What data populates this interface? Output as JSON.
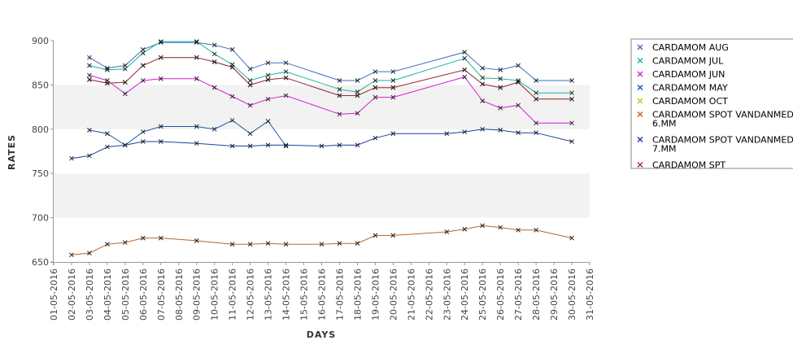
{
  "chart_data": {
    "type": "line",
    "xlabel": "DAYS",
    "ylabel": "RATES",
    "ylim": [
      650,
      900
    ],
    "yticks": [
      650,
      700,
      750,
      800,
      850,
      900
    ],
    "x_tick_labels": [
      "01-05-2016",
      "02-05-2016",
      "03-05-2016",
      "04-05-2016",
      "05-05-2016",
      "06-05-2016",
      "07-05-2016",
      "08-05-2016",
      "09-05-2016",
      "10-05-2016",
      "11-05-2016",
      "12-05-2016",
      "13-05-2016",
      "14-05-2016",
      "15-05-2016",
      "16-05-2016",
      "17-05-2016",
      "18-05-2016",
      "19-05-2016",
      "20-05-2016",
      "21-05-2016",
      "22-05-2016",
      "23-05-2016",
      "24-05-2016",
      "25-05-2016",
      "26-05-2016",
      "27-05-2016",
      "28-05-2016",
      "29-05-2016",
      "30-05-2016",
      "31-05-2016"
    ],
    "grid": "alternating horizontal bands",
    "legend_position": "right",
    "series": [
      {
        "name": "CARDAMOM AUG",
        "color": "#3a6fc4",
        "points": [
          [
            3,
            881
          ],
          [
            4,
            869
          ],
          [
            5,
            872
          ],
          [
            6,
            890
          ],
          [
            7,
            898
          ],
          [
            9,
            898
          ],
          [
            10,
            895
          ],
          [
            11,
            890
          ],
          [
            12,
            868
          ],
          [
            13,
            875
          ],
          [
            14,
            875
          ],
          [
            17,
            855
          ],
          [
            18,
            855
          ],
          [
            19,
            865
          ],
          [
            20,
            865
          ],
          [
            24,
            887
          ],
          [
            25,
            869
          ],
          [
            26,
            867
          ],
          [
            27,
            872
          ],
          [
            28,
            855
          ],
          [
            30,
            855
          ]
        ]
      },
      {
        "name": "CARDAMOM JUL",
        "color": "#1fb39a",
        "points": [
          [
            3,
            872
          ],
          [
            4,
            867
          ],
          [
            5,
            868
          ],
          [
            6,
            886
          ],
          [
            7,
            899
          ],
          [
            9,
            899
          ],
          [
            10,
            885
          ],
          [
            11,
            873
          ],
          [
            12,
            855
          ],
          [
            13,
            861
          ],
          [
            14,
            865
          ],
          [
            17,
            845
          ],
          [
            18,
            842
          ],
          [
            19,
            855
          ],
          [
            20,
            855
          ],
          [
            24,
            880
          ],
          [
            25,
            858
          ],
          [
            26,
            857
          ],
          [
            27,
            855
          ],
          [
            28,
            841
          ],
          [
            30,
            841
          ]
        ]
      },
      {
        "name": "CARDAMOM JUN",
        "color": "#d61ed6",
        "points": [
          [
            3,
            861
          ],
          [
            4,
            855
          ],
          [
            5,
            840
          ],
          [
            6,
            855
          ],
          [
            7,
            857
          ],
          [
            9,
            857
          ],
          [
            10,
            847
          ],
          [
            11,
            837
          ],
          [
            12,
            827
          ],
          [
            13,
            834
          ],
          [
            14,
            838
          ],
          [
            17,
            817
          ],
          [
            18,
            818
          ],
          [
            19,
            836
          ],
          [
            20,
            836
          ],
          [
            24,
            859
          ],
          [
            25,
            832
          ],
          [
            26,
            824
          ],
          [
            27,
            827
          ],
          [
            28,
            807
          ],
          [
            30,
            807
          ]
        ]
      },
      {
        "name": "CARDAMOM MAY",
        "color": "#1a5aa8",
        "points": [
          [
            3,
            799
          ],
          [
            4,
            795
          ],
          [
            5,
            782
          ],
          [
            6,
            797
          ],
          [
            7,
            803
          ],
          [
            9,
            803
          ],
          [
            10,
            800
          ],
          [
            11,
            810
          ],
          [
            12,
            795
          ],
          [
            13,
            809
          ],
          [
            14,
            781
          ]
        ]
      },
      {
        "name": "CARDAMOM OCT",
        "color": "#c8c800",
        "points": [
          [
            3,
            856
          ],
          [
            4,
            852
          ],
          [
            5,
            853
          ],
          [
            6,
            872
          ],
          [
            7,
            881
          ],
          [
            9,
            881
          ],
          [
            10,
            876
          ],
          [
            11,
            870
          ],
          [
            12,
            850
          ],
          [
            13,
            856
          ],
          [
            14,
            858
          ],
          [
            17,
            838
          ],
          [
            18,
            838
          ],
          [
            19,
            847
          ],
          [
            20,
            847
          ],
          [
            24,
            867
          ],
          [
            25,
            851
          ],
          [
            26,
            847
          ],
          [
            27,
            853
          ],
          [
            28,
            834
          ],
          [
            30,
            834
          ]
        ]
      },
      {
        "name": "CARDAMOM SPOT VANDANMEDU\n6.MM",
        "color": "#b8662a",
        "points": [
          [
            2,
            658
          ],
          [
            3,
            660
          ],
          [
            4,
            670
          ],
          [
            5,
            672
          ],
          [
            6,
            677
          ],
          [
            7,
            677
          ],
          [
            9,
            674
          ],
          [
            11,
            670
          ],
          [
            12,
            670
          ],
          [
            13,
            671
          ],
          [
            14,
            670
          ],
          [
            16,
            670
          ],
          [
            17,
            671
          ],
          [
            18,
            671
          ],
          [
            19,
            680
          ],
          [
            20,
            680
          ],
          [
            23,
            684
          ],
          [
            24,
            687
          ],
          [
            25,
            691
          ],
          [
            26,
            689
          ],
          [
            27,
            686
          ],
          [
            28,
            686
          ],
          [
            30,
            677
          ]
        ]
      },
      {
        "name": "CARDAMOM SPOT VANDANMEDU\n7.MM",
        "color": "#1a3fa0",
        "points": [
          [
            2,
            767
          ],
          [
            3,
            770
          ],
          [
            4,
            780
          ],
          [
            5,
            782
          ],
          [
            6,
            786
          ],
          [
            7,
            786
          ],
          [
            9,
            784
          ],
          [
            11,
            781
          ],
          [
            12,
            781
          ],
          [
            13,
            782
          ],
          [
            14,
            782
          ],
          [
            16,
            781
          ],
          [
            17,
            782
          ],
          [
            18,
            782
          ],
          [
            19,
            790
          ],
          [
            20,
            795
          ],
          [
            23,
            795
          ],
          [
            24,
            797
          ],
          [
            25,
            800
          ],
          [
            26,
            799
          ],
          [
            27,
            796
          ],
          [
            28,
            796
          ],
          [
            30,
            786
          ]
        ]
      },
      {
        "name": "CARDAMOM SPT",
        "color": "#9a2a55",
        "points": [
          [
            3,
            856
          ],
          [
            4,
            852
          ],
          [
            5,
            853
          ],
          [
            6,
            872
          ],
          [
            7,
            881
          ],
          [
            9,
            881
          ],
          [
            10,
            876
          ],
          [
            11,
            870
          ],
          [
            12,
            850
          ],
          [
            13,
            856
          ],
          [
            14,
            858
          ],
          [
            17,
            838
          ],
          [
            18,
            838
          ],
          [
            19,
            847
          ],
          [
            20,
            847
          ],
          [
            24,
            867
          ],
          [
            25,
            851
          ],
          [
            26,
            847
          ],
          [
            27,
            853
          ],
          [
            28,
            834
          ],
          [
            30,
            834
          ]
        ]
      }
    ]
  }
}
